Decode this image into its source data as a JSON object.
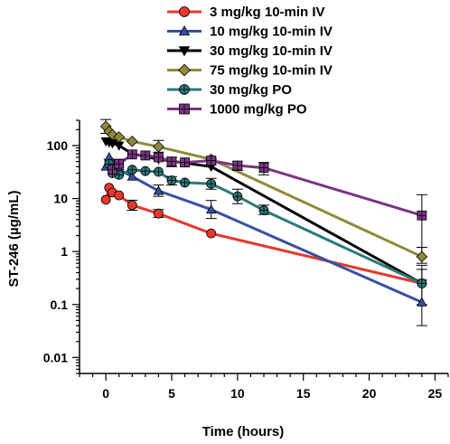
{
  "chart_data": {
    "type": "line",
    "xlabel": "Time (hours)",
    "ylabel": "ST-246 (µg/mL)",
    "x_scale": "linear",
    "y_scale": "log",
    "xlim": [
      -2,
      26
    ],
    "ylim": [
      0.005,
      300
    ],
    "x_ticks": [
      0,
      5,
      10,
      15,
      20,
      25
    ],
    "x_tick_labels": [
      "0",
      "5",
      "10",
      "15",
      "20",
      "25"
    ],
    "y_ticks": [
      0.01,
      0.1,
      1,
      10,
      100
    ],
    "y_tick_labels": [
      "0.01",
      "0.1",
      "1",
      "10",
      "100"
    ],
    "grid": false,
    "legend_position": "top-center",
    "error_bars": true,
    "series": [
      {
        "name": "3 mg/kg 10-min IV",
        "color": "#e8372c",
        "marker": "circle",
        "x": [
          0,
          0.25,
          0.5,
          1,
          2,
          4,
          8,
          24
        ],
        "y": [
          9.5,
          16,
          13,
          11.5,
          7.5,
          5.2,
          2.2,
          0.25
        ],
        "err_low": [
          null,
          null,
          null,
          null,
          1.5,
          0.8,
          null,
          null
        ],
        "err_high": [
          null,
          null,
          null,
          null,
          1.8,
          1.0,
          null,
          null
        ]
      },
      {
        "name": "10 mg/kg 10-min IV",
        "color": "#3a4f9e",
        "marker": "triangle",
        "x": [
          0,
          0.25,
          0.5,
          1,
          2,
          4,
          8,
          24
        ],
        "y": [
          40,
          60,
          48,
          35,
          26,
          14,
          6.2,
          0.11
        ],
        "err_low": [
          null,
          null,
          null,
          null,
          null,
          3,
          2,
          0.07
        ],
        "err_high": [
          null,
          null,
          null,
          null,
          null,
          4,
          3,
          0.35
        ]
      },
      {
        "name": "30 mg/kg 10-min IV",
        "color": "#000000",
        "marker": "triangle-down",
        "x": [
          0,
          0.25,
          0.5,
          1,
          2,
          4,
          8,
          24
        ],
        "y": [
          120,
          115,
          110,
          100,
          70,
          55,
          40,
          0.25
        ],
        "err_low": [
          null,
          null,
          null,
          null,
          null,
          null,
          null,
          0.15
        ],
        "err_high": [
          null,
          null,
          null,
          null,
          null,
          null,
          null,
          0.3
        ]
      },
      {
        "name": "75 mg/kg 10-min IV",
        "color": "#8f8a3b",
        "marker": "diamond",
        "x": [
          0,
          0.25,
          0.5,
          1,
          2,
          4,
          8,
          24
        ],
        "y": [
          230,
          185,
          160,
          145,
          120,
          95,
          55,
          0.8
        ],
        "err_low": [
          60,
          null,
          null,
          null,
          null,
          20,
          null,
          0.2
        ],
        "err_high": [
          80,
          null,
          null,
          null,
          null,
          30,
          null,
          0.4
        ]
      },
      {
        "name": "30 mg/kg PO",
        "color": "#2b7a7a",
        "marker": "circle-cross",
        "x": [
          0.25,
          0.5,
          1,
          2,
          3,
          4,
          5,
          6,
          8,
          10,
          12,
          24
        ],
        "y": [
          45,
          30,
          28,
          35,
          33,
          32,
          22,
          20,
          19,
          11,
          6,
          0.25
        ],
        "err_low": [
          10,
          null,
          null,
          null,
          null,
          null,
          4,
          null,
          4,
          3,
          1,
          null
        ],
        "err_high": [
          10,
          null,
          null,
          null,
          null,
          null,
          4,
          null,
          5,
          4,
          1.5,
          null
        ]
      },
      {
        "name": "1000 mg/kg PO",
        "color": "#7b3584",
        "marker": "square-cross",
        "x": [
          0.5,
          1,
          2,
          3,
          4,
          5,
          6,
          8,
          10,
          12,
          24
        ],
        "y": [
          35,
          45,
          68,
          65,
          60,
          50,
          48,
          52,
          42,
          38,
          4.8
        ],
        "err_low": [
          null,
          10,
          null,
          null,
          null,
          10,
          null,
          8,
          8,
          10,
          4
        ],
        "err_high": [
          null,
          10,
          null,
          null,
          null,
          10,
          null,
          8,
          8,
          10,
          7
        ]
      }
    ]
  }
}
